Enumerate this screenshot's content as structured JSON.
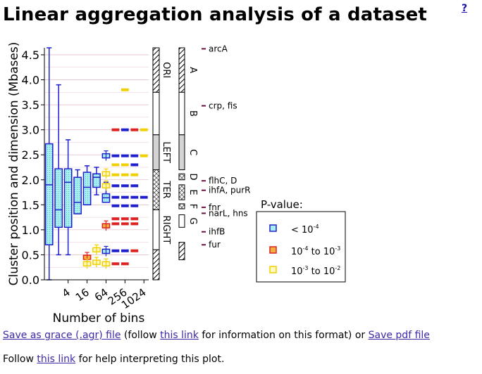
{
  "page": {
    "title": "Linear aggregation analysis of a dataset",
    "help_link": "?"
  },
  "links": {
    "save_prefix": "",
    "save_grace": "Save as grace (.agr) file",
    "save_mid1": " (follow ",
    "this_link_1": "this link",
    "save_mid2": " for information on this format) or ",
    "save_pdf": "Save pdf file",
    "follow_prefix": "Follow ",
    "this_link_2": "this link",
    "follow_suffix": " for help interpreting this plot."
  },
  "colors": {
    "low": "#1f1fcc",
    "low_fill": "#a8f0f0",
    "mid": "#dd2222",
    "high": "#f0d000"
  },
  "chart_data": {
    "type": "box",
    "title": "",
    "xlabel": "Number of bins",
    "ylabel": "Cluster position and dimension (Mbases)",
    "xtick_labels": [
      "4",
      "16",
      "64",
      "256",
      "1024"
    ],
    "ytick_labels": [
      "0.0",
      "0.5",
      "1.0",
      "1.5",
      "2.0",
      "2.5",
      "3.0",
      "3.5",
      "4.0",
      "4.5"
    ],
    "ylim": [
      0.0,
      4.64
    ],
    "grid": true,
    "legend": {
      "title": "P-value:",
      "entries": [
        {
          "label": "< 10",
          "sup": "-4",
          "color_key": "low"
        },
        {
          "label_a": "10",
          "sup_a": "-4",
          "label_b": " to 10",
          "sup_b": "-3",
          "color_key": "mid"
        },
        {
          "label_a": "10",
          "sup_a": "-3",
          "label_b": " to 10",
          "sup_b": "-2",
          "color_key": "high"
        }
      ],
      "placement": "bottom-right"
    },
    "boxes": [
      {
        "xi": 0,
        "color": "low",
        "q1": 0.7,
        "median": 1.9,
        "q3": 2.72,
        "whisker_low": 0.0,
        "whisker_high": 4.64
      },
      {
        "xi": 1,
        "color": "low",
        "q1": 1.05,
        "median": 1.4,
        "q3": 2.22,
        "whisker_low": 0.5,
        "whisker_high": 3.9
      },
      {
        "xi": 2,
        "color": "low",
        "q1": 1.05,
        "median": 1.95,
        "q3": 2.22,
        "whisker_low": 0.5,
        "whisker_high": 2.8
      },
      {
        "xi": 3,
        "color": "low",
        "q1": 1.32,
        "median": 1.55,
        "q3": 2.05,
        "whisker_low": 1.32,
        "whisker_high": 2.2
      },
      {
        "xi": 4,
        "color": "low",
        "q1": 1.5,
        "median": 1.85,
        "q3": 2.15,
        "whisker_low": 1.5,
        "whisker_high": 2.28
      },
      {
        "xi": 5,
        "color": "low",
        "q1": 1.85,
        "median": 2.05,
        "q3": 2.12,
        "whisker_low": 1.7,
        "whisker_high": 2.25
      },
      {
        "xi": 6,
        "color": "low",
        "q1": 1.55,
        "median": 1.64,
        "q3": 1.72,
        "whisker_low": 1.55,
        "whisker_high": 1.95
      }
    ],
    "small_marks": [
      {
        "xi": 4,
        "y": 0.45,
        "color": "mid",
        "box": true
      },
      {
        "xi": 4,
        "y": 0.32,
        "color": "high",
        "box": true
      },
      {
        "xi": 5,
        "y": 0.6,
        "color": "high",
        "box": true
      },
      {
        "xi": 5,
        "y": 0.35,
        "color": "high",
        "box": true
      },
      {
        "xi": 6,
        "y": 0.57,
        "color": "low",
        "box": true
      },
      {
        "xi": 6,
        "y": 0.32,
        "color": "high",
        "box": true
      },
      {
        "xi": 6,
        "y": 1.08,
        "color": "mid",
        "box": true
      },
      {
        "xi": 6,
        "y": 1.88,
        "color": "high",
        "box": true
      },
      {
        "xi": 6,
        "y": 2.12,
        "color": "high",
        "box": true
      },
      {
        "xi": 6,
        "y": 2.48,
        "color": "low",
        "box": true
      },
      {
        "xi": 7,
        "y": 0.58,
        "color": "low"
      },
      {
        "xi": 7,
        "y": 0.32,
        "color": "mid"
      },
      {
        "xi": 7,
        "y": 1.22,
        "color": "mid"
      },
      {
        "xi": 7,
        "y": 1.12,
        "color": "mid"
      },
      {
        "xi": 7,
        "y": 1.48,
        "color": "low"
      },
      {
        "xi": 7,
        "y": 1.65,
        "color": "low"
      },
      {
        "xi": 7,
        "y": 1.88,
        "color": "low"
      },
      {
        "xi": 7,
        "y": 2.1,
        "color": "high"
      },
      {
        "xi": 7,
        "y": 2.3,
        "color": "high"
      },
      {
        "xi": 7,
        "y": 2.48,
        "color": "low"
      },
      {
        "xi": 7,
        "y": 3.0,
        "color": "mid"
      },
      {
        "xi": 8,
        "y": 0.58,
        "color": "low"
      },
      {
        "xi": 8,
        "y": 0.32,
        "color": "mid"
      },
      {
        "xi": 8,
        "y": 1.22,
        "color": "mid"
      },
      {
        "xi": 8,
        "y": 1.12,
        "color": "mid"
      },
      {
        "xi": 8,
        "y": 1.48,
        "color": "low"
      },
      {
        "xi": 8,
        "y": 1.65,
        "color": "low"
      },
      {
        "xi": 8,
        "y": 1.88,
        "color": "low"
      },
      {
        "xi": 8,
        "y": 2.1,
        "color": "high"
      },
      {
        "xi": 8,
        "y": 2.3,
        "color": "high"
      },
      {
        "xi": 8,
        "y": 2.48,
        "color": "low"
      },
      {
        "xi": 8,
        "y": 3.0,
        "color": "low"
      },
      {
        "xi": 8,
        "y": 3.8,
        "color": "high"
      },
      {
        "xi": 9,
        "y": 0.58,
        "color": "mid"
      },
      {
        "xi": 9,
        "y": 1.22,
        "color": "mid"
      },
      {
        "xi": 9,
        "y": 1.12,
        "color": "mid"
      },
      {
        "xi": 9,
        "y": 1.48,
        "color": "low"
      },
      {
        "xi": 9,
        "y": 1.65,
        "color": "low"
      },
      {
        "xi": 9,
        "y": 1.88,
        "color": "low"
      },
      {
        "xi": 9,
        "y": 2.1,
        "color": "high"
      },
      {
        "xi": 9,
        "y": 2.3,
        "color": "low"
      },
      {
        "xi": 9,
        "y": 2.48,
        "color": "low"
      },
      {
        "xi": 9,
        "y": 3.0,
        "color": "mid"
      },
      {
        "xi": 10,
        "y": 1.65,
        "color": "low"
      },
      {
        "xi": 10,
        "y": 2.48,
        "color": "high"
      },
      {
        "xi": 10,
        "y": 3.0,
        "color": "high"
      }
    ],
    "regions": [
      {
        "label": "ORI",
        "y0": 3.75,
        "y1": 4.64,
        "style": "hatch"
      },
      {
        "label": "",
        "y0": 2.9,
        "y1": 3.75,
        "style": "white"
      },
      {
        "label": "LEFT",
        "y0": 2.2,
        "y1": 2.9,
        "style": "gray"
      },
      {
        "label": "TER",
        "y0": 1.4,
        "y1": 2.2,
        "style": "cross"
      },
      {
        "label": "RIGHT",
        "y0": 0.6,
        "y1": 1.4,
        "style": "white"
      },
      {
        "label": "",
        "y0": 0.0,
        "y1": 0.6,
        "style": "hatch"
      }
    ],
    "domains": [
      {
        "label": "A",
        "y0": 3.75,
        "y1": 4.64,
        "style": "hatch"
      },
      {
        "label": "B",
        "y0": 2.9,
        "y1": 3.75,
        "style": "white"
      },
      {
        "label": "C",
        "y0": 2.2,
        "y1": 2.9,
        "style": "gray"
      },
      {
        "label": "D",
        "y0": 2.0,
        "y1": 2.12,
        "style": "cross"
      },
      {
        "label": "E",
        "y0": 1.6,
        "y1": 1.9,
        "style": "cross"
      },
      {
        "label": "F",
        "y0": 1.42,
        "y1": 1.52,
        "style": "cross"
      },
      {
        "label": "G",
        "y0": 1.05,
        "y1": 1.3,
        "style": "white"
      },
      {
        "label": "",
        "y0": 0.4,
        "y1": 0.75,
        "style": "hatch"
      }
    ],
    "genes": [
      {
        "label": "arcA",
        "y": 4.62
      },
      {
        "label": "crp, fis",
        "y": 3.48
      },
      {
        "label": "flhC, D",
        "y": 1.98
      },
      {
        "label": "ihfA, purR",
        "y": 1.79
      },
      {
        "label": "fnr",
        "y": 1.45
      },
      {
        "label": "narL, hns",
        "y": 1.33
      },
      {
        "label": "ihfB",
        "y": 0.96
      },
      {
        "label": "fur",
        "y": 0.7
      }
    ]
  }
}
